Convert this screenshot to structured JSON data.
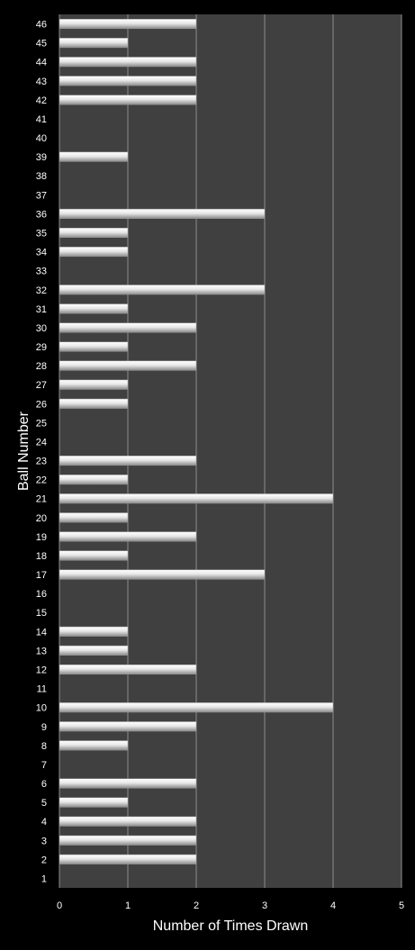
{
  "chart_data": {
    "type": "bar",
    "orientation": "horizontal",
    "title": "",
    "xlabel": "Number of Times Drawn",
    "ylabel": "Ball Number",
    "xlim": [
      0,
      5
    ],
    "xticks": [
      "0",
      "1",
      "2",
      "3",
      "4",
      "5"
    ],
    "grid": "vertical",
    "legend": "none",
    "colors": {
      "background": "#000000",
      "plot_area": "#404040",
      "gridline": "#8c8c8c",
      "bar": "#e8e8e8",
      "text": "#ffffff"
    },
    "categories": [
      "1",
      "2",
      "3",
      "4",
      "5",
      "6",
      "7",
      "8",
      "9",
      "10",
      "11",
      "12",
      "13",
      "14",
      "15",
      "16",
      "17",
      "18",
      "19",
      "20",
      "21",
      "22",
      "23",
      "24",
      "25",
      "26",
      "27",
      "28",
      "29",
      "30",
      "31",
      "32",
      "33",
      "34",
      "35",
      "36",
      "37",
      "38",
      "39",
      "40",
      "41",
      "42",
      "43",
      "44",
      "45",
      "46"
    ],
    "values": [
      0,
      2,
      2,
      2,
      1,
      2,
      0,
      1,
      2,
      4,
      0,
      2,
      1,
      1,
      0,
      0,
      3,
      1,
      2,
      1,
      4,
      1,
      2,
      0,
      0,
      1,
      1,
      2,
      1,
      2,
      1,
      3,
      0,
      1,
      1,
      3,
      0,
      0,
      1,
      0,
      0,
      2,
      2,
      2,
      1,
      2
    ]
  }
}
